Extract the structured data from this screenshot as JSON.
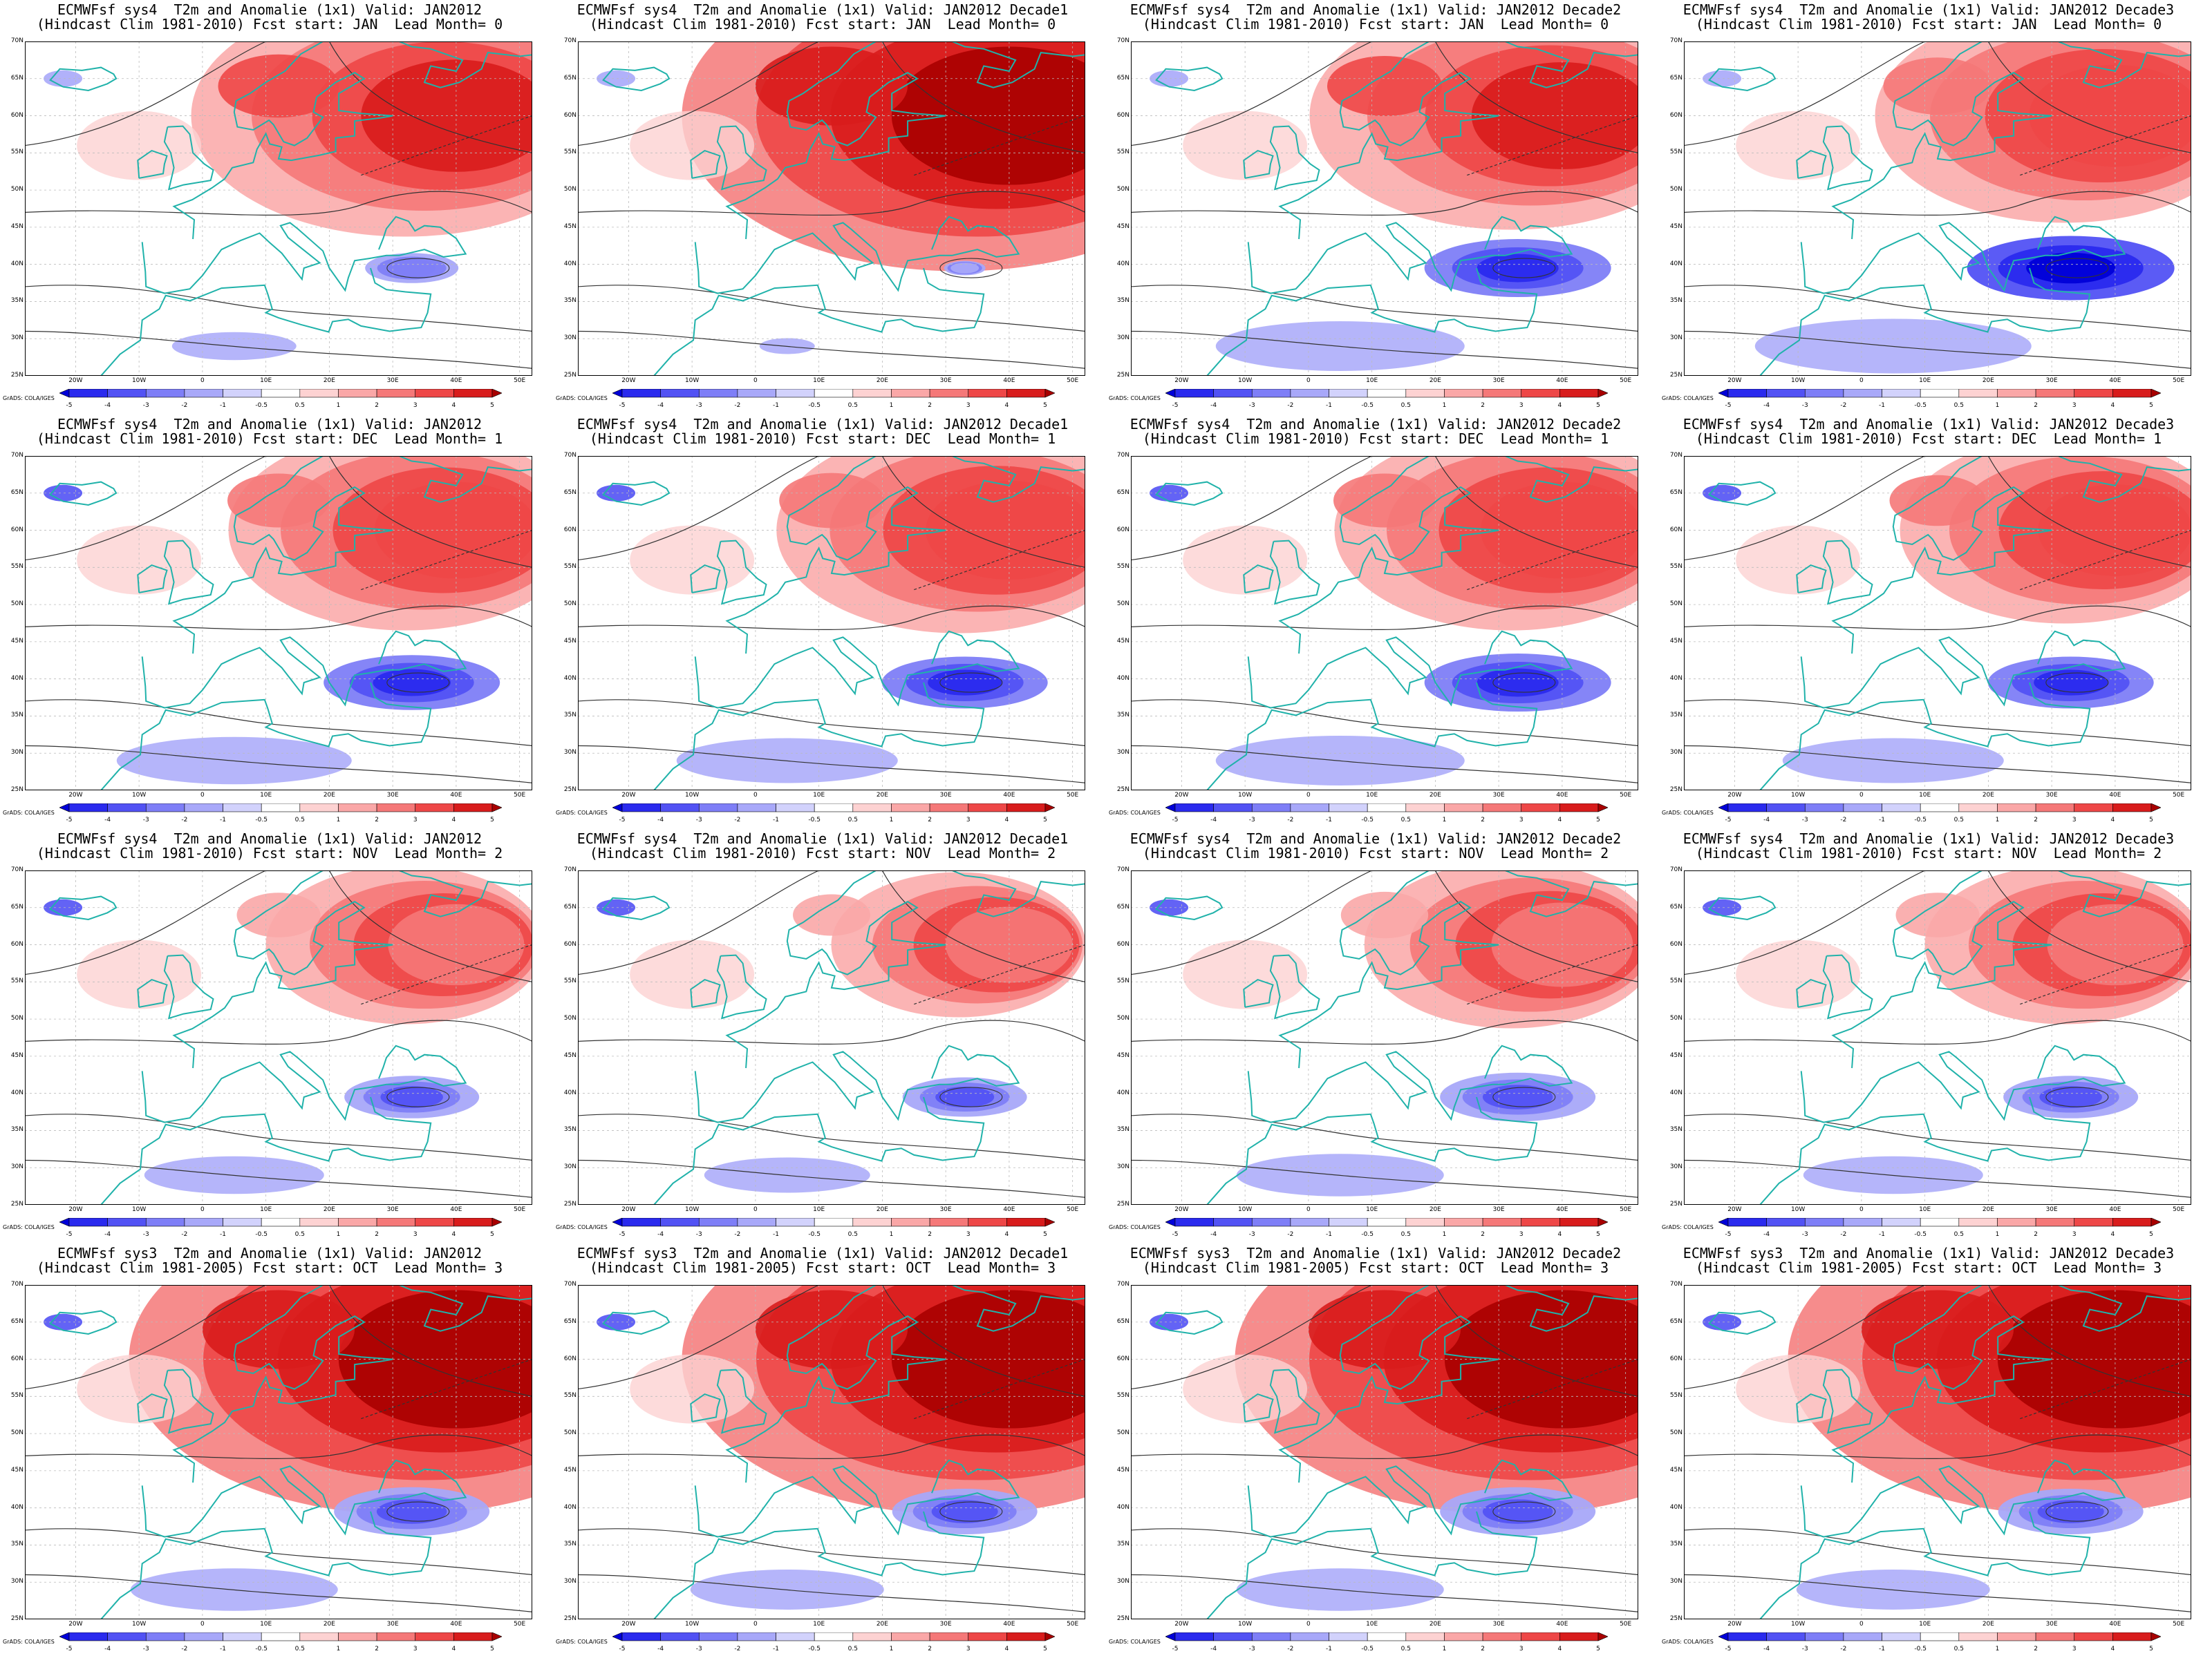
{
  "figure": {
    "grid": "4 rows x 4 columns",
    "panels": [
      {
        "row": 0,
        "col": 0,
        "line1": "ECMWFsf sys4  T2m and Anomalie (1x1) Valid: JAN2012",
        "line2": "(Hindcast Clim 1981-2010) Fcst start: JAN  Lead Month= 0"
      },
      {
        "row": 0,
        "col": 1,
        "line1": "ECMWFsf sys4  T2m and Anomalie (1x1) Valid: JAN2012 Decade1",
        "line2": "(Hindcast Clim 1981-2010) Fcst start: JAN  Lead Month= 0"
      },
      {
        "row": 0,
        "col": 2,
        "line1": "ECMWFsf sys4  T2m and Anomalie (1x1) Valid: JAN2012 Decade2",
        "line2": "(Hindcast Clim 1981-2010) Fcst start: JAN  Lead Month= 0"
      },
      {
        "row": 0,
        "col": 3,
        "line1": "ECMWFsf sys4  T2m and Anomalie (1x1) Valid: JAN2012 Decade3",
        "line2": "(Hindcast Clim 1981-2010) Fcst start: JAN  Lead Month= 0"
      },
      {
        "row": 1,
        "col": 0,
        "line1": "ECMWFsf sys4  T2m and Anomalie (1x1) Valid: JAN2012",
        "line2": "(Hindcast Clim 1981-2010) Fcst start: DEC  Lead Month= 1"
      },
      {
        "row": 1,
        "col": 1,
        "line1": "ECMWFsf sys4  T2m and Anomalie (1x1) Valid: JAN2012 Decade1",
        "line2": "(Hindcast Clim 1981-2010) Fcst start: DEC  Lead Month= 1"
      },
      {
        "row": 1,
        "col": 2,
        "line1": "ECMWFsf sys4  T2m and Anomalie (1x1) Valid: JAN2012 Decade2",
        "line2": "(Hindcast Clim 1981-2010) Fcst start: DEC  Lead Month= 1"
      },
      {
        "row": 1,
        "col": 3,
        "line1": "ECMWFsf sys4  T2m and Anomalie (1x1) Valid: JAN2012 Decade3",
        "line2": "(Hindcast Clim 1981-2010) Fcst start: DEC  Lead Month= 1"
      },
      {
        "row": 2,
        "col": 0,
        "line1": "ECMWFsf sys4  T2m and Anomalie (1x1) Valid: JAN2012",
        "line2": "(Hindcast Clim 1981-2010) Fcst start: NOV  Lead Month= 2"
      },
      {
        "row": 2,
        "col": 1,
        "line1": "ECMWFsf sys4  T2m and Anomalie (1x1) Valid: JAN2012 Decade1",
        "line2": "(Hindcast Clim 1981-2010) Fcst start: NOV  Lead Month= 2"
      },
      {
        "row": 2,
        "col": 2,
        "line1": "ECMWFsf sys4  T2m and Anomalie (1x1) Valid: JAN2012 Decade2",
        "line2": "(Hindcast Clim 1981-2010) Fcst start: NOV  Lead Month= 2"
      },
      {
        "row": 2,
        "col": 3,
        "line1": "ECMWFsf sys4  T2m and Anomalie (1x1) Valid: JAN2012 Decade3",
        "line2": "(Hindcast Clim 1981-2010) Fcst start: NOV  Lead Month= 2"
      },
      {
        "row": 3,
        "col": 0,
        "line1": "ECMWFsf sys3  T2m and Anomalie (1x1) Valid: JAN2012",
        "line2": "(Hindcast Clim 1981-2005) Fcst start: OCT  Lead Month= 3"
      },
      {
        "row": 3,
        "col": 1,
        "line1": "ECMWFsf sys3  T2m and Anomalie (1x1) Valid: JAN2012 Decade1",
        "line2": "(Hindcast Clim 1981-2005) Fcst start: OCT  Lead Month= 3"
      },
      {
        "row": 3,
        "col": 2,
        "line1": "ECMWFsf sys3  T2m and Anomalie (1x1) Valid: JAN2012 Decade2",
        "line2": "(Hindcast Clim 1981-2005) Fcst start: OCT  Lead Month= 3"
      },
      {
        "row": 3,
        "col": 3,
        "line1": "ECMWFsf sys3  T2m and Anomalie (1x1) Valid: JAN2012 Decade3",
        "line2": "(Hindcast Clim 1981-2005) Fcst start: OCT  Lead Month= 3"
      }
    ],
    "latitude_labels": [
      "70N",
      "65N",
      "60N",
      "55N",
      "50N",
      "45N",
      "40N",
      "35N",
      "30N",
      "25N"
    ],
    "longitude_labels": [
      "20W",
      "10W",
      "0",
      "10E",
      "20E",
      "30E",
      "40E",
      "50E"
    ],
    "colorbar": {
      "labels": [
        "-5",
        "-4",
        "-3",
        "-2",
        "-1",
        "-0.5",
        "0.5",
        "1",
        "2",
        "3",
        "4",
        "5"
      ],
      "colors": [
        "#0000d8",
        "#2a2aee",
        "#5252f4",
        "#7e7ef7",
        "#a8a8f9",
        "#d2d2fc",
        "#ffffff",
        "#fdd2d2",
        "#faa7a7",
        "#f57878",
        "#ee4747",
        "#d81c1c",
        "#a80000"
      ]
    },
    "credit": "GrADS: COLA/IGES",
    "anomaly_fill": {
      "warm_region": "Northern and Eastern Europe (warm anomaly)",
      "cold_region": "Eastern Mediterranean / Turkey (cold anomaly)"
    }
  }
}
